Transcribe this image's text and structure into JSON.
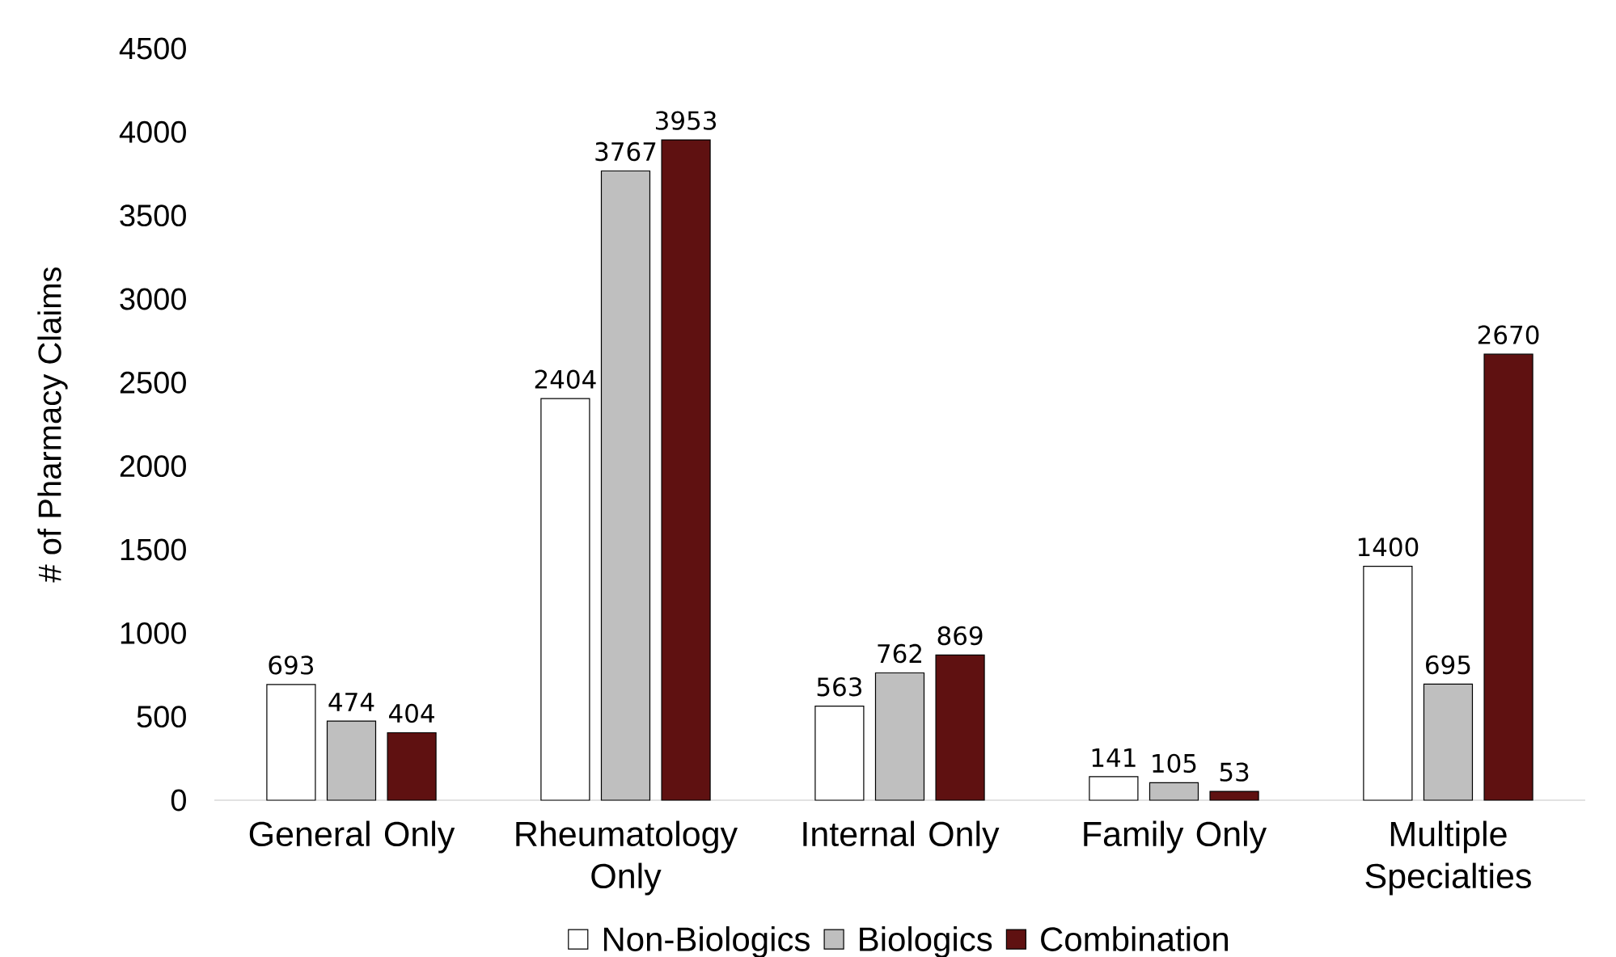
{
  "chart_data": {
    "type": "bar",
    "ylabel": "# of Pharmacy Claims",
    "categories": [
      "General Only",
      "Rheumatology Only",
      "Internal Only",
      "Family Only",
      "Multiple Specialties"
    ],
    "series": [
      {
        "name": "Non-Biologics",
        "color": "#ffffff",
        "values": [
          693,
          2404,
          563,
          141,
          1400
        ]
      },
      {
        "name": "Biologics",
        "color": "#bfbfbf",
        "values": [
          474,
          3767,
          762,
          105,
          695
        ]
      },
      {
        "name": "Combination",
        "color": "#5f1111",
        "values": [
          404,
          3953,
          869,
          53,
          2670
        ]
      }
    ],
    "ylim": [
      0,
      4500
    ],
    "yticks": [
      0,
      500,
      1000,
      1500,
      2000,
      2500,
      3000,
      3500,
      4000,
      4500
    ],
    "data_labels": true,
    "legend": "bottom",
    "grid": false
  }
}
